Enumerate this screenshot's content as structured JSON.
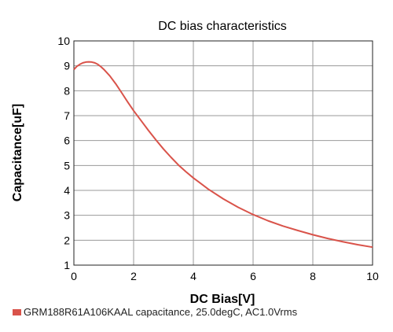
{
  "chart_data": {
    "type": "line",
    "title": "DC bias characteristics",
    "xlabel": "DC Bias[V]",
    "ylabel": "Capacitance[uF]",
    "xlim": [
      0,
      10
    ],
    "ylim": [
      1,
      10
    ],
    "xticks": [
      "0",
      "2",
      "4",
      "6",
      "8",
      "10"
    ],
    "yticks": [
      "1",
      "2",
      "3",
      "4",
      "5",
      "6",
      "7",
      "8",
      "9",
      "10"
    ],
    "grid": true,
    "legend_position": "bottom-left",
    "series": [
      {
        "name": "GRM188R61A106KAAL capacitance, 25.0degC, AC1.0Vrms",
        "color": "#d9534a",
        "x": [
          0,
          0.1,
          0.2,
          0.3,
          0.4,
          0.5,
          0.6,
          0.7,
          0.8,
          0.9,
          1.0,
          1.2,
          1.4,
          1.6,
          1.8,
          2.0,
          2.25,
          2.5,
          2.75,
          3.0,
          3.25,
          3.5,
          3.75,
          4.0,
          4.5,
          5.0,
          5.5,
          6.0,
          6.5,
          7.0,
          7.5,
          8.0,
          8.5,
          9.0,
          9.5,
          10.0
        ],
        "y": [
          8.85,
          8.98,
          9.06,
          9.12,
          9.15,
          9.16,
          9.15,
          9.12,
          9.06,
          8.97,
          8.86,
          8.6,
          8.28,
          7.92,
          7.55,
          7.2,
          6.8,
          6.4,
          6.02,
          5.66,
          5.33,
          5.02,
          4.75,
          4.5,
          4.05,
          3.66,
          3.32,
          3.03,
          2.78,
          2.57,
          2.39,
          2.22,
          2.07,
          1.94,
          1.82,
          1.72
        ]
      }
    ]
  }
}
